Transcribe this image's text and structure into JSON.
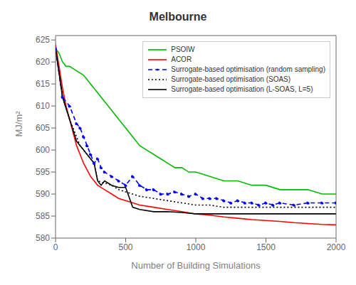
{
  "chart_data": {
    "type": "line",
    "title": "Melbourne",
    "xlabel": "Number of Building Simulations",
    "ylabel": "MJ/m²",
    "xlim": [
      0,
      2000
    ],
    "ylim": [
      580,
      626
    ],
    "xticks": [
      0,
      500,
      1000,
      1500,
      2000
    ],
    "yticks": [
      580,
      585,
      590,
      595,
      600,
      605,
      610,
      615,
      620,
      625
    ],
    "grid": false,
    "legend": "upper right",
    "series": [
      {
        "name": "PSOIW",
        "color": "#00bb00",
        "line_style": "solid",
        "x": [
          0,
          25,
          50,
          75,
          100,
          150,
          200,
          250,
          300,
          350,
          400,
          450,
          500,
          550,
          600,
          650,
          700,
          750,
          800,
          850,
          900,
          950,
          1000,
          1100,
          1200,
          1300,
          1400,
          1500,
          1600,
          1700,
          1800,
          1900,
          2000
        ],
        "values": [
          623,
          622,
          620,
          619,
          619,
          618,
          617,
          615,
          613,
          611,
          609,
          607,
          605,
          603,
          601,
          600,
          599,
          598,
          597,
          596,
          596,
          595,
          595,
          594,
          593,
          593,
          592,
          592,
          591,
          591,
          591,
          590,
          590
        ]
      },
      {
        "name": "ACOR",
        "color": "#ff0000",
        "line_style": "solid",
        "x": [
          0,
          10,
          25,
          50,
          75,
          100,
          125,
          150,
          175,
          200,
          250,
          300,
          350,
          400,
          450,
          500,
          600,
          700,
          800,
          900,
          1000,
          1100,
          1200,
          1300,
          1400,
          1500,
          1600,
          1700,
          1800,
          1900,
          2000
        ],
        "values": [
          624,
          622,
          619,
          614,
          610,
          607,
          604,
          601,
          599,
          597,
          594,
          592,
          591,
          590,
          589,
          588.5,
          587.5,
          587,
          586.5,
          586,
          585.5,
          585.2,
          584.8,
          584.5,
          584.2,
          584,
          583.8,
          583.5,
          583.3,
          583.1,
          583
        ]
      },
      {
        "name": "Surrogate-based optimisation (random sampling)",
        "color": "#0000ff",
        "line_style": "dashed",
        "marker": "dot",
        "x": [
          0,
          50,
          100,
          150,
          175,
          200,
          225,
          250,
          275,
          300,
          325,
          350,
          400,
          450,
          500,
          550,
          600,
          650,
          700,
          750,
          800,
          850,
          900,
          950,
          1000,
          1050,
          1100,
          1150,
          1200,
          1250,
          1300,
          1350,
          1400,
          1450,
          1500,
          1550,
          1600,
          1700,
          1800,
          1900,
          2000
        ],
        "values": [
          623,
          612,
          610,
          606,
          605,
          603,
          601,
          599,
          597,
          598,
          596,
          595,
          594,
          593,
          592,
          594,
          592,
          591,
          591,
          590,
          590,
          590.5,
          590,
          589.5,
          590,
          589,
          589,
          589,
          588.5,
          588,
          588.5,
          588,
          588,
          587.5,
          588,
          587.5,
          588,
          587.5,
          588,
          588,
          588
        ]
      },
      {
        "name": "Surrogate-based optimisation (SOAS)",
        "color": "#000000",
        "line_style": "dotted",
        "x": [
          0,
          50,
          100,
          150,
          175,
          200,
          225,
          250,
          275,
          300,
          350,
          400,
          450,
          500,
          550,
          600,
          700,
          800,
          900,
          1000,
          1100,
          1200,
          1300,
          1400,
          1500,
          1600,
          1700,
          1800,
          1900,
          2000
        ],
        "values": [
          623,
          612,
          607,
          603,
          601,
          600,
          599,
          598,
          597,
          593,
          592.5,
          592,
          591,
          590.5,
          590,
          589.5,
          589,
          588.5,
          588,
          587.5,
          587.5,
          587,
          587,
          587,
          587,
          587,
          587,
          587,
          587,
          587
        ]
      },
      {
        "name": "Surrogate-based optimisation (L-SOAS, L=5)",
        "color": "#000000",
        "line_style": "solid",
        "x": [
          0,
          50,
          100,
          150,
          175,
          200,
          225,
          250,
          275,
          300,
          325,
          350,
          400,
          450,
          500,
          550,
          600,
          700,
          800,
          900,
          1000,
          1100,
          1200,
          1300,
          1400,
          1500,
          1600,
          1700,
          1800,
          1900,
          2000
        ],
        "values": [
          623,
          612,
          607,
          602,
          601,
          600,
          599,
          598,
          597,
          593,
          592,
          593,
          592,
          591.5,
          591.5,
          587,
          586.5,
          586,
          586,
          585.8,
          585.5,
          585.5,
          585.5,
          585.5,
          585.5,
          585.5,
          585.5,
          585.5,
          585.5,
          585.5,
          585.5
        ]
      }
    ]
  }
}
